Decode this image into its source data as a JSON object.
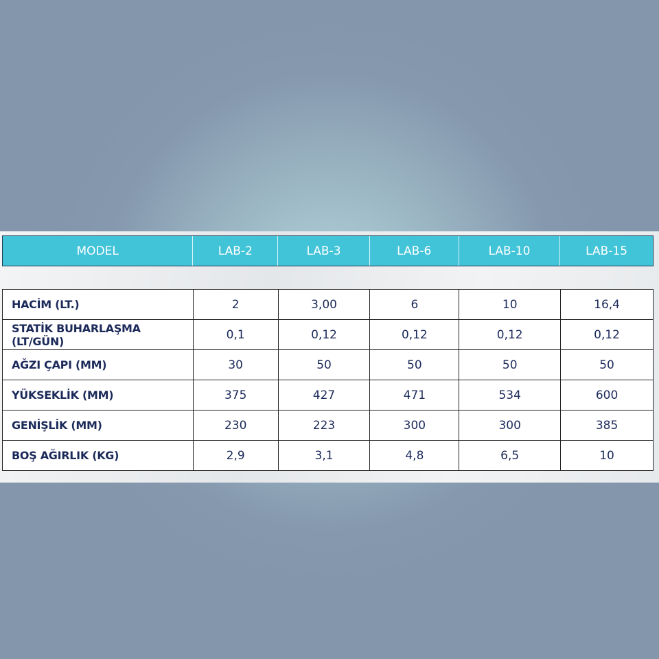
{
  "table": {
    "header": [
      "MODEL",
      "LAB-2",
      "LAB-3",
      "LAB-6",
      "LAB-10",
      "LAB-15"
    ],
    "rows": [
      {
        "label": "HACİM (LT.)",
        "values": [
          "2",
          "3,00",
          "6",
          "10",
          "16,4"
        ]
      },
      {
        "label": "STATİK BUHARLAŞMA (LT/GÜN)",
        "values": [
          "0,1",
          "0,12",
          "0,12",
          "0,12",
          "0,12"
        ]
      },
      {
        "label": "AĞZI ÇAPI (MM)",
        "values": [
          "30",
          "50",
          "50",
          "50",
          "50"
        ]
      },
      {
        "label": "YÜKSEKLİK (MM)",
        "values": [
          "375",
          "427",
          "471",
          "534",
          "600"
        ]
      },
      {
        "label": "GENİŞLİK (MM)",
        "values": [
          "230",
          "223",
          "300",
          "300",
          "385"
        ]
      },
      {
        "label": "BOŞ AĞIRLIK (KG)",
        "values": [
          "2,9",
          "3,1",
          "4,8",
          "6,5",
          "10"
        ]
      }
    ]
  },
  "colors": {
    "header_bg": "#41c3d8",
    "text": "#1c2a5a"
  }
}
